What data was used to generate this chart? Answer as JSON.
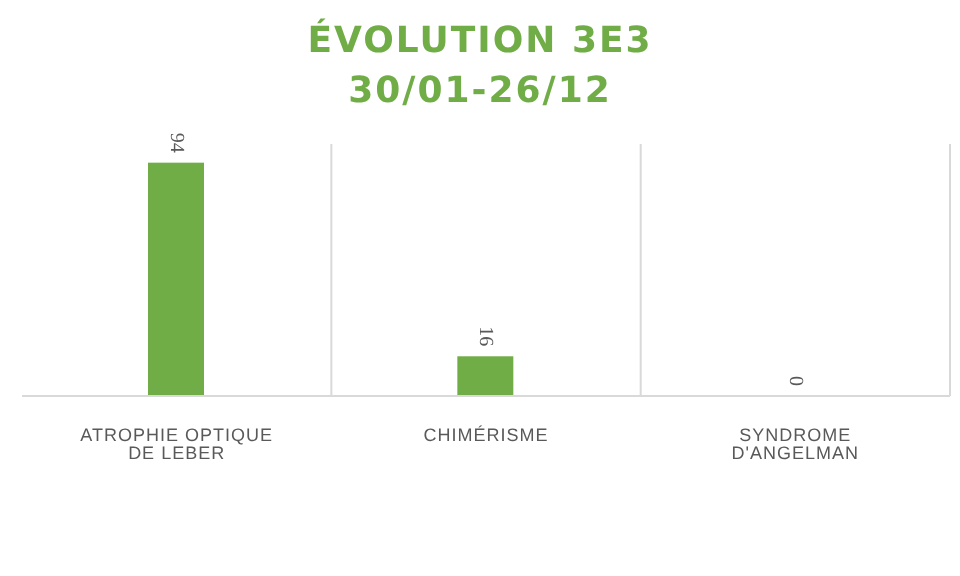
{
  "chart_data": {
    "type": "bar",
    "title": "ÉVOLUTION 3E3\n30/01-26/12",
    "categories": [
      "ATROPHIE OPTIQUE DE LEBER",
      "CHIMÉRISME",
      "SYNDROME D'ANGELMAN"
    ],
    "values": [
      94,
      16,
      0
    ],
    "color": "#70ad47",
    "data_labels": true,
    "grid": "x"
  }
}
